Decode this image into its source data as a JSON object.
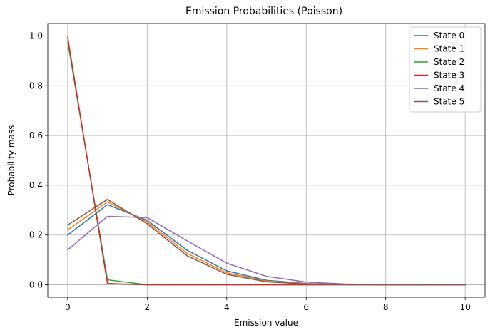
{
  "chart_data": {
    "type": "line",
    "title": "Emission Probabilities (Poisson)",
    "xlabel": "Emission value",
    "ylabel": "Probability mass",
    "xlim": [
      -0.5,
      10.5
    ],
    "ylim": [
      -0.05,
      1.05
    ],
    "xticks": [
      0,
      2,
      4,
      6,
      8,
      10
    ],
    "xtick_labels": [
      "0",
      "2",
      "4",
      "6",
      "8",
      "10"
    ],
    "yticks": [
      0.0,
      0.2,
      0.4,
      0.6,
      0.8,
      1.0
    ],
    "ytick_labels": [
      "0.0",
      "0.2",
      "0.4",
      "0.6",
      "0.8",
      "1.0"
    ],
    "grid": true,
    "legend_position": "top-right",
    "x": [
      0,
      1,
      2,
      3,
      4,
      5,
      6,
      7,
      8,
      9,
      10
    ],
    "series": [
      {
        "name": "State 0",
        "color": "#1f77b4",
        "values": [
          0.2,
          0.322,
          0.259,
          0.139,
          0.056,
          0.018,
          0.005,
          0.001,
          0.0002,
          4e-05,
          6e-06
        ]
      },
      {
        "name": "State 1",
        "color": "#ff7f0e",
        "values": [
          0.22,
          0.333,
          0.252,
          0.127,
          0.048,
          0.015,
          0.004,
          0.001,
          0.0002,
          3e-05,
          4e-06
        ]
      },
      {
        "name": "State 2",
        "color": "#2ca02c",
        "values": [
          0.98,
          0.02,
          0.0002,
          0.0,
          0.0,
          0.0,
          0.0,
          0.0,
          0.0,
          0.0,
          0.0
        ]
      },
      {
        "name": "State 3",
        "color": "#d62728",
        "values": [
          0.995,
          0.005,
          1e-05,
          0.0,
          0.0,
          0.0,
          0.0,
          0.0,
          0.0,
          0.0,
          0.0
        ]
      },
      {
        "name": "State 4",
        "color": "#9467bd",
        "values": [
          0.14,
          0.275,
          0.27,
          0.177,
          0.087,
          0.034,
          0.011,
          0.003,
          0.0008,
          0.0002,
          3e-05
        ]
      },
      {
        "name": "State 5",
        "color": "#8c564b",
        "values": [
          0.24,
          0.343,
          0.245,
          0.117,
          0.042,
          0.012,
          0.003,
          0.0006,
          0.0001,
          2e-05,
          2e-06
        ]
      }
    ]
  }
}
